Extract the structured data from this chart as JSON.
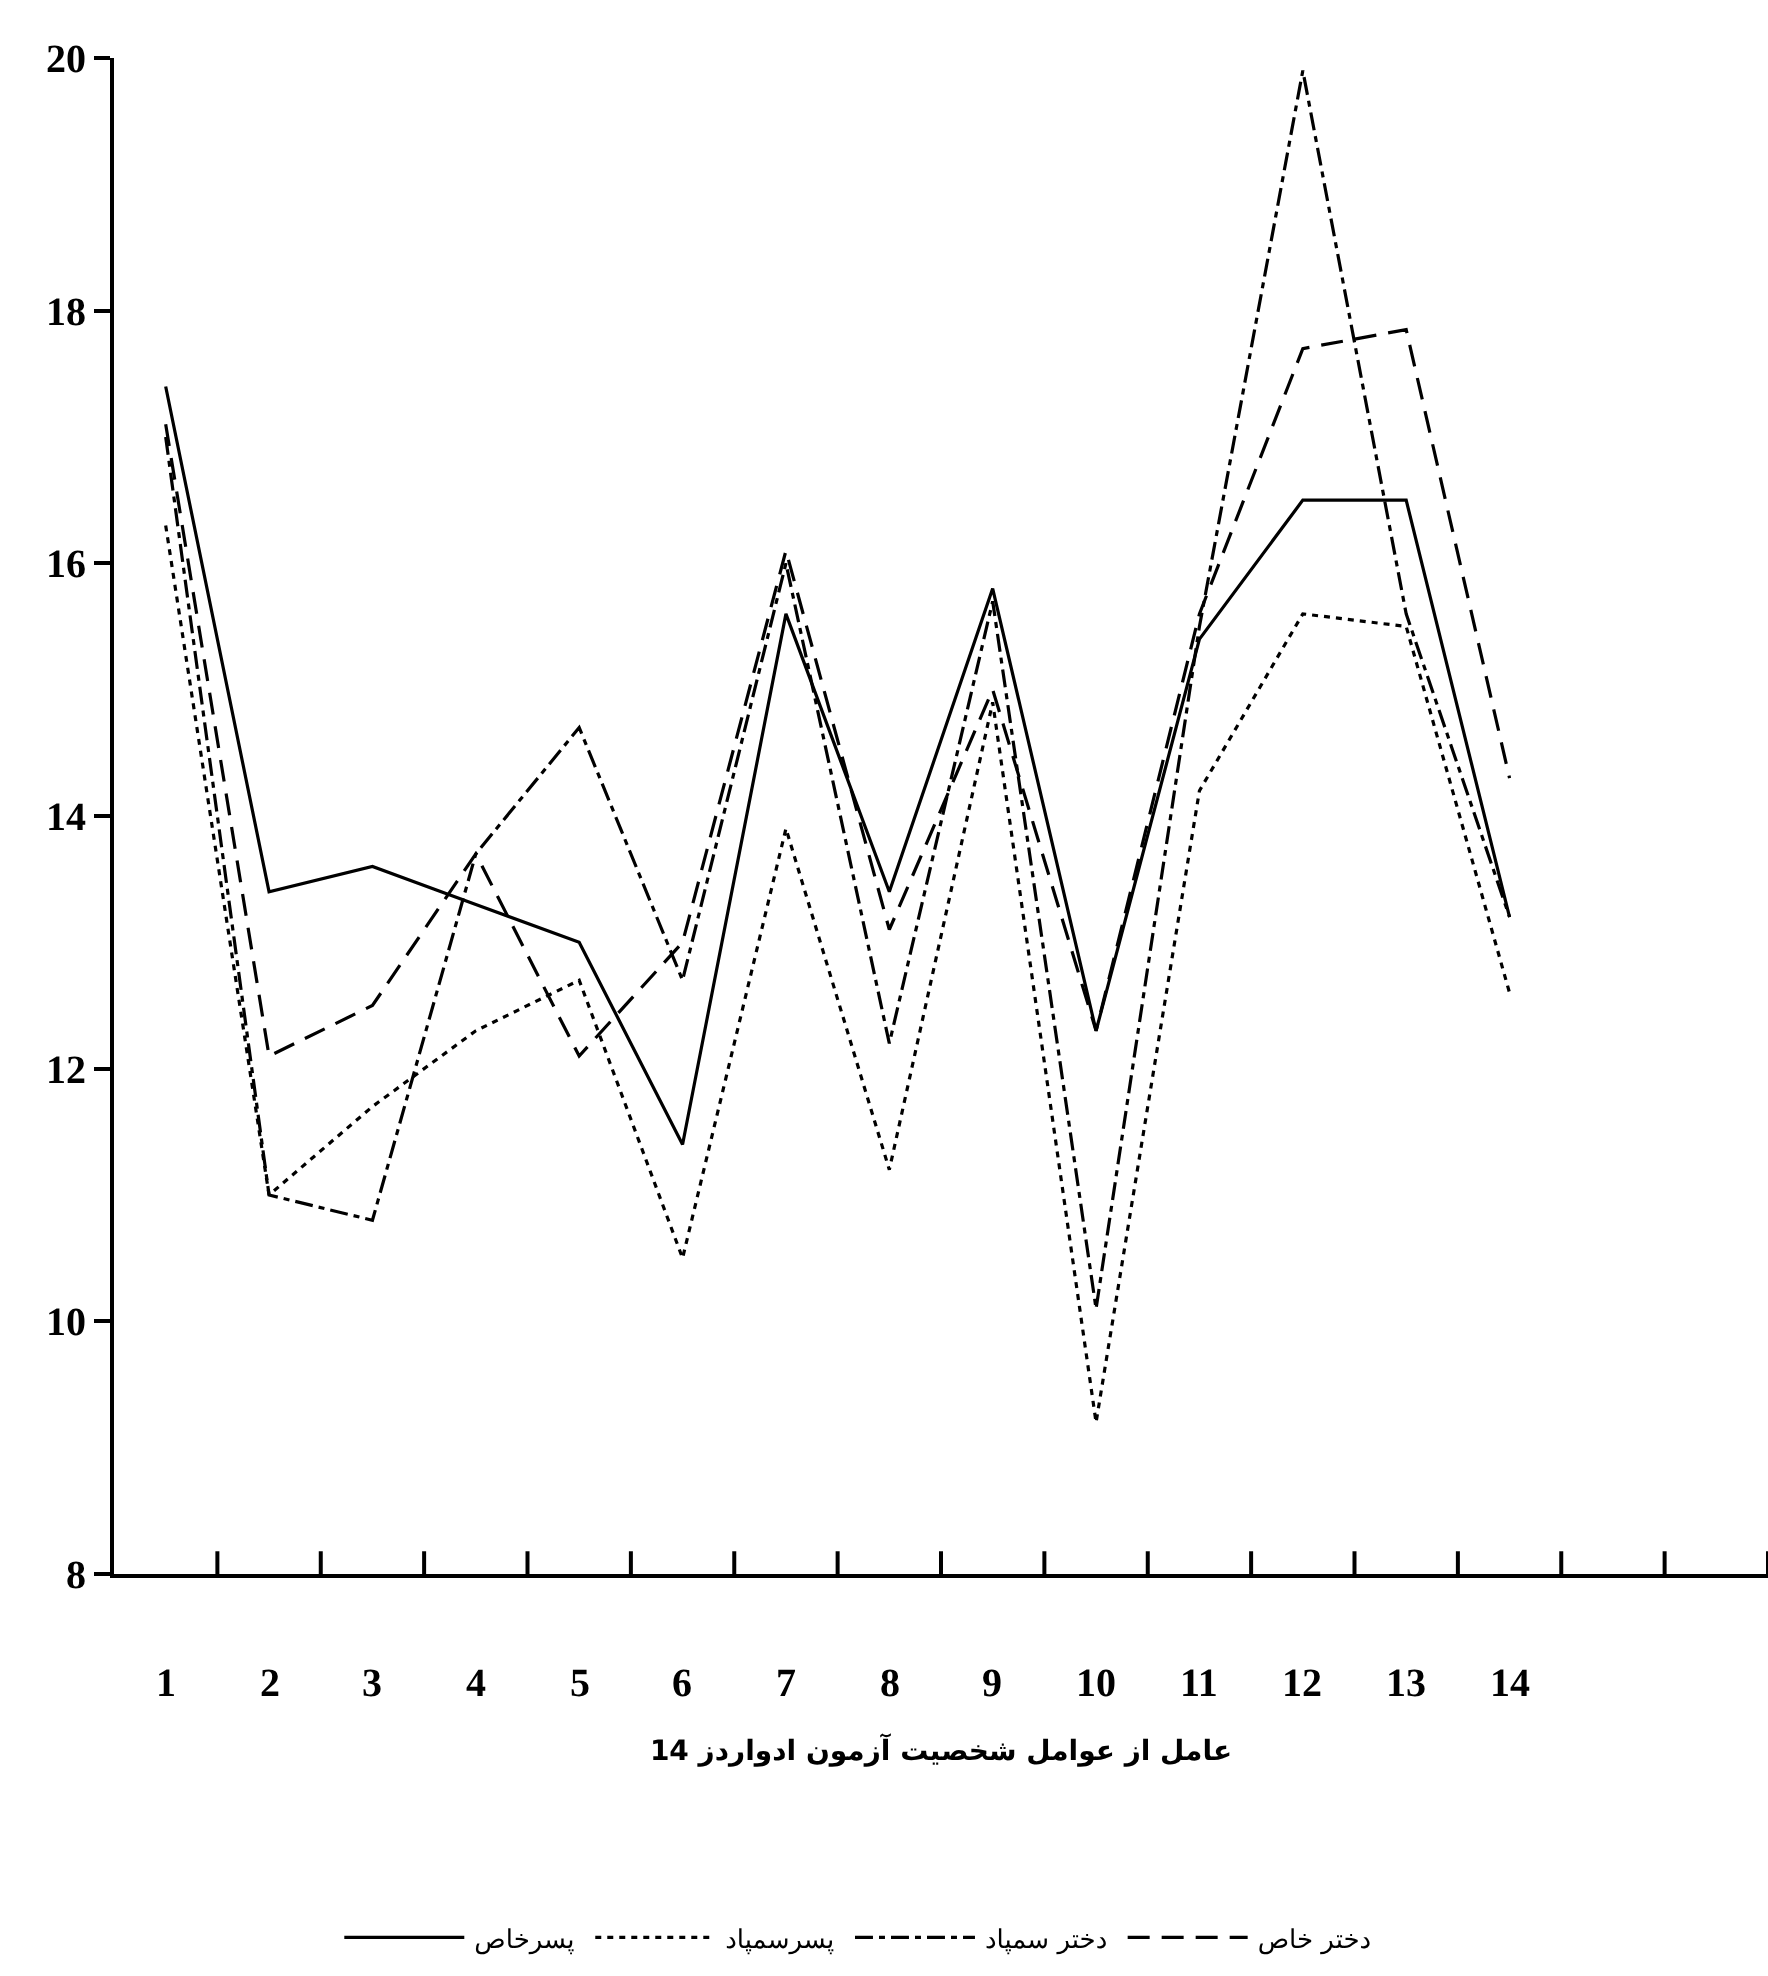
{
  "chart_data": {
    "type": "line",
    "xlabel": "14 عامل از عوامل شخصیت آزمون ادواردز",
    "categories": [
      "1",
      "2",
      "3",
      "4",
      "5",
      "6",
      "7",
      "8",
      "9",
      "10",
      "11",
      "12",
      "13",
      "14"
    ],
    "series": [
      {
        "name": "پسرخاص",
        "color": "#000000",
        "line_style": "solid",
        "values": [
          17.4,
          13.4,
          13.6,
          13.3,
          13.0,
          11.4,
          15.6,
          13.4,
          15.8,
          12.3,
          15.4,
          16.5,
          16.5,
          13.2
        ]
      },
      {
        "name": "پسرسمپاد",
        "color": "#000000",
        "line_style": "dotted",
        "values": [
          16.3,
          11.0,
          11.7,
          12.3,
          12.7,
          10.5,
          13.9,
          11.2,
          14.9,
          9.2,
          14.2,
          15.6,
          15.5,
          12.6
        ]
      },
      {
        "name": "دختر سمپاد",
        "color": "#000000",
        "line_style": "dashdot",
        "values": [
          17.0,
          11.0,
          10.8,
          13.7,
          14.7,
          12.7,
          16.0,
          12.2,
          15.7,
          10.1,
          15.5,
          19.9,
          15.6,
          13.2
        ]
      },
      {
        "name": "دختر خاص",
        "color": "#000000",
        "line_style": "dashed",
        "values": [
          17.1,
          12.1,
          12.5,
          13.7,
          12.1,
          13.0,
          16.1,
          13.1,
          15.0,
          12.3,
          15.6,
          17.7,
          17.85,
          14.3
        ]
      }
    ],
    "ylim": [
      8,
      20
    ],
    "yticks": [
      8,
      10,
      12,
      14,
      16,
      18,
      20
    ],
    "grid": false,
    "legend": "bottom",
    "marker": "none"
  }
}
